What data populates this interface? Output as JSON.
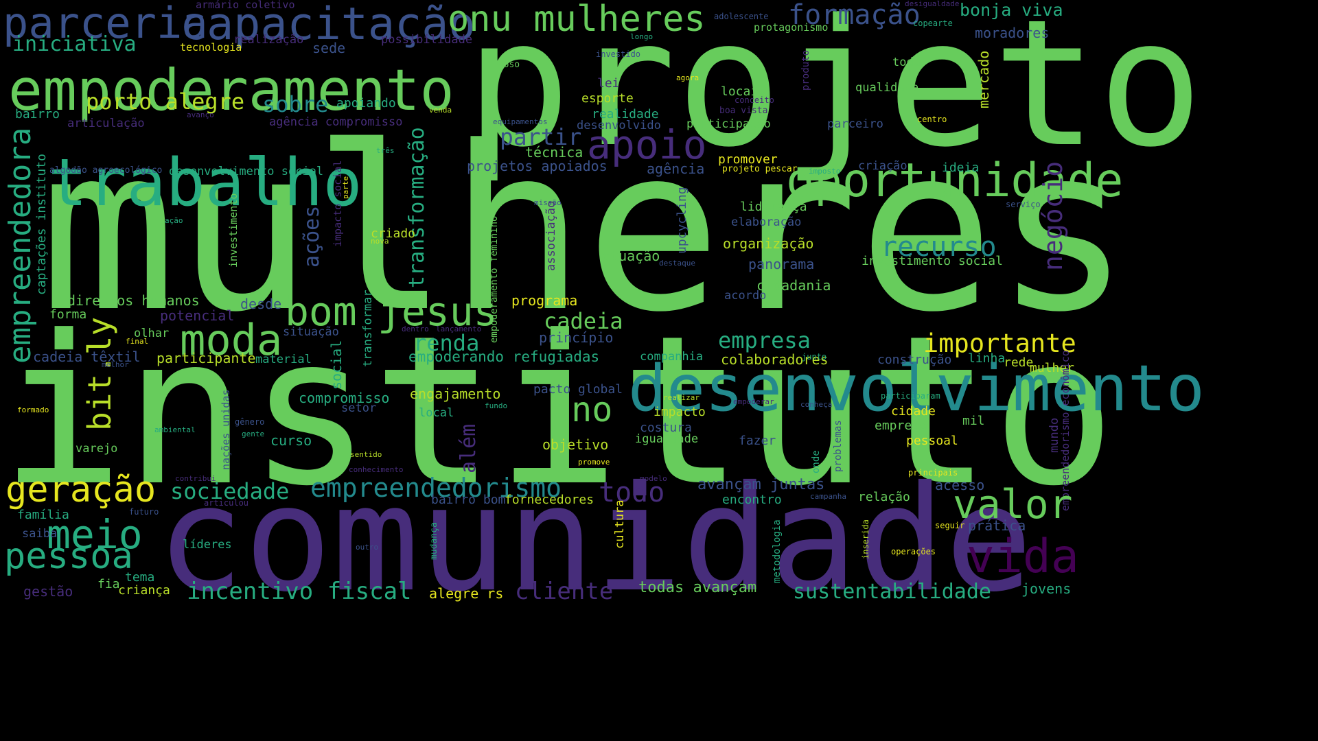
{
  "palette": {
    "background": "#000000",
    "yellow": "#e6e61f",
    "lime": "#b8de29",
    "green": "#67cc5c",
    "teal": "#27ad81",
    "cyan": "#238a8d",
    "blue": "#2c728e",
    "navy": "#3b528b",
    "indigo": "#472d7b",
    "purple": "#440154"
  },
  "words": [
    {
      "text": "mulheres",
      "color": "#67cc5c"
    },
    {
      "text": "instituto",
      "color": "#67cc5c"
    },
    {
      "text": "projeto",
      "color": "#67cc5c"
    },
    {
      "text": "comunidade",
      "color": "#472d7b"
    },
    {
      "text": "desenvolvimento",
      "color": "#238a8d"
    },
    {
      "text": "trabalho",
      "color": "#27ad81"
    },
    {
      "text": "empoderamento",
      "color": "#67cc5c"
    },
    {
      "text": "oportunidade",
      "color": "#67cc5c"
    },
    {
      "text": "capacitação",
      "color": "#3b528b"
    },
    {
      "text": "parceria",
      "color": "#3b528b"
    },
    {
      "text": "onu mulheres",
      "color": "#67cc5c"
    },
    {
      "text": "formação",
      "color": "#3b528b"
    },
    {
      "text": "bonja viva",
      "color": "#27ad81"
    },
    {
      "text": "moradores",
      "color": "#3b528b"
    },
    {
      "text": "armário coletivo",
      "color": "#472d7b"
    },
    {
      "text": "realização",
      "color": "#472d7b"
    },
    {
      "text": "possibilidade",
      "color": "#472d7b"
    },
    {
      "text": "adolescente",
      "color": "#3b528b"
    },
    {
      "text": "desigualdade",
      "color": "#472d7b"
    },
    {
      "text": "copearte",
      "color": "#27ad81"
    },
    {
      "text": "protagonismo",
      "color": "#67cc5c"
    },
    {
      "text": "iniciativa",
      "color": "#27ad81"
    },
    {
      "text": "tecnologia",
      "color": "#e6e61f"
    },
    {
      "text": "sede",
      "color": "#3b528b"
    },
    {
      "text": "longo",
      "color": "#27ad81"
    },
    {
      "text": "investido",
      "color": "#3b528b"
    },
    {
      "text": "idoso",
      "color": "#67cc5c"
    },
    {
      "text": "agora",
      "color": "#e6e61f"
    },
    {
      "text": "toda",
      "color": "#67cc5c"
    },
    {
      "text": "qualidade",
      "color": "#67cc5c"
    },
    {
      "text": "mercado",
      "color": "#b8de29"
    },
    {
      "text": "produto",
      "color": "#472d7b"
    },
    {
      "text": "porto alegre",
      "color": "#b8de29"
    },
    {
      "text": "sobre",
      "color": "#238a8d"
    },
    {
      "text": "apoiando",
      "color": "#27ad81"
    },
    {
      "text": "transformação",
      "color": "#27ad81"
    },
    {
      "text": "lei",
      "color": "#472d7b"
    },
    {
      "text": "esporte",
      "color": "#b8de29"
    },
    {
      "text": "locais",
      "color": "#67cc5c"
    },
    {
      "text": "conceito",
      "color": "#472d7b"
    },
    {
      "text": "boa vista",
      "color": "#472d7b"
    },
    {
      "text": "realidade",
      "color": "#27ad81"
    },
    {
      "text": "desenvolvido",
      "color": "#3b528b"
    },
    {
      "text": "participação",
      "color": "#67cc5c"
    },
    {
      "text": "parceiro",
      "color": "#3b528b"
    },
    {
      "text": "centro",
      "color": "#e6e61f"
    },
    {
      "text": "bairro",
      "color": "#27ad81"
    },
    {
      "text": "articulação",
      "color": "#472d7b"
    },
    {
      "text": "avanço",
      "color": "#472d7b"
    },
    {
      "text": "agência compromisso",
      "color": "#472d7b"
    },
    {
      "text": "venda",
      "color": "#b8de29"
    },
    {
      "text": "equipamentos",
      "color": "#3b528b"
    },
    {
      "text": "empreendedora",
      "color": "#27ad81"
    },
    {
      "text": "apoio",
      "color": "#472d7b"
    },
    {
      "text": "partir",
      "color": "#3b528b"
    },
    {
      "text": "técnica",
      "color": "#67cc5c"
    },
    {
      "text": "projetos apoiados",
      "color": "#3b528b"
    },
    {
      "text": "agência",
      "color": "#3b528b"
    },
    {
      "text": "promover",
      "color": "#e6e61f"
    },
    {
      "text": "projeto pescar",
      "color": "#e6e61f"
    },
    {
      "text": "imposto",
      "color": "#27ad81"
    },
    {
      "text": "criação",
      "color": "#3b528b"
    },
    {
      "text": "ideia",
      "color": "#27ad81"
    },
    {
      "text": "algodão agroecológico",
      "color": "#3b528b"
    },
    {
      "text": "três",
      "color": "#27ad81"
    },
    {
      "text": "desenvolvimento social",
      "color": "#27ad81"
    },
    {
      "text": "impacto social",
      "color": "#472d7b"
    },
    {
      "text": "parte",
      "color": "#e6e61f"
    },
    {
      "text": "negócio",
      "color": "#472d7b"
    },
    {
      "text": "liderança",
      "color": "#67cc5c"
    },
    {
      "text": "elaboração",
      "color": "#3b528b"
    },
    {
      "text": "serviço",
      "color": "#3b528b"
    },
    {
      "text": "captações instituto",
      "color": "#27ad81"
    },
    {
      "text": "investimento",
      "color": "#67cc5c"
    },
    {
      "text": "ações",
      "color": "#3b528b"
    },
    {
      "text": "ação",
      "color": "#27ad81"
    },
    {
      "text": "missão",
      "color": "#3b528b"
    },
    {
      "text": "empoderamento feminino",
      "color": "#67cc5c"
    },
    {
      "text": "associação",
      "color": "#472d7b"
    },
    {
      "text": "upcycling",
      "color": "#3b528b"
    },
    {
      "text": "organização",
      "color": "#b8de29"
    },
    {
      "text": "recurso",
      "color": "#238a8d"
    },
    {
      "text": "investimento social",
      "color": "#67cc5c"
    },
    {
      "text": "criado",
      "color": "#b8de29"
    },
    {
      "text": "nova",
      "color": "#b8de29"
    },
    {
      "text": "atuação",
      "color": "#67cc5c"
    },
    {
      "text": "destaque",
      "color": "#3b528b"
    },
    {
      "text": "panorama",
      "color": "#3b528b"
    },
    {
      "text": "cidadania",
      "color": "#67cc5c"
    },
    {
      "text": "direitos humanos",
      "color": "#67cc5c"
    },
    {
      "text": "bom",
      "color": "#67cc5c"
    },
    {
      "text": "jesus",
      "color": "#67cc5c"
    },
    {
      "text": "desde",
      "color": "#3b528b"
    },
    {
      "text": "programa",
      "color": "#e6e61f"
    },
    {
      "text": "acordo",
      "color": "#3b528b"
    },
    {
      "text": "forma",
      "color": "#67cc5c"
    },
    {
      "text": "bit.ly",
      "color": "#b8de29"
    },
    {
      "text": "potencial",
      "color": "#472d7b"
    },
    {
      "text": "moda",
      "color": "#67cc5c"
    },
    {
      "text": "cadeia",
      "color": "#67cc5c"
    },
    {
      "text": "olhar",
      "color": "#67cc5c"
    },
    {
      "text": "situação",
      "color": "#3b528b"
    },
    {
      "text": "dentro",
      "color": "#472d7b"
    },
    {
      "text": "lançamento",
      "color": "#472d7b"
    },
    {
      "text": "princípio",
      "color": "#3b528b"
    },
    {
      "text": "empresa",
      "color": "#27ad81"
    },
    {
      "text": "importante",
      "color": "#e6e61f"
    },
    {
      "text": "final",
      "color": "#e6e61f"
    },
    {
      "text": "renda",
      "color": "#27ad81"
    },
    {
      "text": "cadeia têxtil",
      "color": "#3b528b"
    },
    {
      "text": "participante",
      "color": "#b8de29"
    },
    {
      "text": "material",
      "color": "#27ad81"
    },
    {
      "text": "empoderando refugiadas",
      "color": "#27ad81"
    },
    {
      "text": "companhia",
      "color": "#27ad81"
    },
    {
      "text": "colaboradores",
      "color": "#b8de29"
    },
    {
      "text": "junto",
      "color": "#27ad81"
    },
    {
      "text": "construção",
      "color": "#3b528b"
    },
    {
      "text": "linha",
      "color": "#27ad81"
    },
    {
      "text": "rede",
      "color": "#b8de29"
    },
    {
      "text": "mulher",
      "color": "#b8de29"
    },
    {
      "text": "melhor",
      "color": "#3b528b"
    },
    {
      "text": "transformar",
      "color": "#27ad81"
    },
    {
      "text": "social",
      "color": "#27ad81"
    },
    {
      "text": "engajamento",
      "color": "#b8de29"
    },
    {
      "text": "pacto global",
      "color": "#3b528b"
    },
    {
      "text": "participaram",
      "color": "#27ad81"
    },
    {
      "text": "compromisso",
      "color": "#27ad81"
    },
    {
      "text": "setor",
      "color": "#3b528b"
    },
    {
      "text": "fundo",
      "color": "#27ad81"
    },
    {
      "text": "realizar",
      "color": "#b8de29"
    },
    {
      "text": "empoderar",
      "color": "#472d7b"
    },
    {
      "text": "conheça",
      "color": "#3b528b"
    },
    {
      "text": "cidade",
      "color": "#e6e61f"
    },
    {
      "text": "empreendedorismo econômico",
      "color": "#472d7b"
    },
    {
      "text": "formado",
      "color": "#e6e61f"
    },
    {
      "text": "nações unidas",
      "color": "#3b528b"
    },
    {
      "text": "gênero",
      "color": "#3b528b"
    },
    {
      "text": "local",
      "color": "#27ad81"
    },
    {
      "text": "além",
      "color": "#472d7b"
    },
    {
      "text": "impacto",
      "color": "#b8de29"
    },
    {
      "text": "costura",
      "color": "#3b528b"
    },
    {
      "text": "igualdade",
      "color": "#67cc5c"
    },
    {
      "text": "mil",
      "color": "#67cc5c"
    },
    {
      "text": "emprego",
      "color": "#67cc5c"
    },
    {
      "text": "ambiental",
      "color": "#27ad81"
    },
    {
      "text": "gente",
      "color": "#27ad81"
    },
    {
      "text": "curso",
      "color": "#27ad81"
    },
    {
      "text": "objetivo",
      "color": "#b8de29"
    },
    {
      "text": "fazer",
      "color": "#3b528b"
    },
    {
      "text": "problemas",
      "color": "#3b528b"
    },
    {
      "text": "pessoal",
      "color": "#e6e61f"
    },
    {
      "text": "varejo",
      "color": "#67cc5c"
    },
    {
      "text": "sentido",
      "color": "#b8de29"
    },
    {
      "text": "promove",
      "color": "#e6e61f"
    },
    {
      "text": "onde",
      "color": "#27ad81"
    },
    {
      "text": "mundo",
      "color": "#472d7b"
    },
    {
      "text": "principais",
      "color": "#e6e61f"
    },
    {
      "text": "conhecimento",
      "color": "#472d7b"
    },
    {
      "text": "modelo",
      "color": "#472d7b"
    },
    {
      "text": "contribui",
      "color": "#472d7b"
    },
    {
      "text": "geração",
      "color": "#e6e61f"
    },
    {
      "text": "sociedade",
      "color": "#27ad81"
    },
    {
      "text": "empreendedorismo",
      "color": "#238a8d"
    },
    {
      "text": "todo",
      "color": "#472d7b"
    },
    {
      "text": "avançam juntas",
      "color": "#3b528b"
    },
    {
      "text": "acesso",
      "color": "#3b528b"
    },
    {
      "text": "valor",
      "color": "#67cc5c"
    },
    {
      "text": "meio",
      "color": "#27ad81"
    },
    {
      "text": "família",
      "color": "#27ad81"
    },
    {
      "text": "futuro",
      "color": "#3b528b"
    },
    {
      "text": "articulou",
      "color": "#472d7b"
    },
    {
      "text": "bairro bom",
      "color": "#3b528b"
    },
    {
      "text": "fornecedores",
      "color": "#b8de29"
    },
    {
      "text": "encontro",
      "color": "#27ad81"
    },
    {
      "text": "relação",
      "color": "#67cc5c"
    },
    {
      "text": "campanha",
      "color": "#3b528b"
    },
    {
      "text": "prática",
      "color": "#3b528b"
    },
    {
      "text": "seguir",
      "color": "#e6e61f"
    },
    {
      "text": "saiba",
      "color": "#3b528b"
    },
    {
      "text": "pessoa",
      "color": "#27ad81"
    },
    {
      "text": "líderes",
      "color": "#27ad81"
    },
    {
      "text": "mudança",
      "color": "#27ad81"
    },
    {
      "text": "cultura",
      "color": "#e6e61f"
    },
    {
      "text": "metodologia",
      "color": "#27ad81"
    },
    {
      "text": "inserida",
      "color": "#b8de29"
    },
    {
      "text": "operações",
      "color": "#e6e61f"
    },
    {
      "text": "vida",
      "color": "#440154"
    },
    {
      "text": "outro",
      "color": "#3b528b"
    },
    {
      "text": "tema",
      "color": "#27ad81"
    },
    {
      "text": "fia",
      "color": "#67cc5c"
    },
    {
      "text": "criança",
      "color": "#b8de29"
    },
    {
      "text": "gestão",
      "color": "#472d7b"
    },
    {
      "text": "incentivo fiscal",
      "color": "#27ad81"
    },
    {
      "text": "cliente",
      "color": "#472d7b"
    },
    {
      "text": "alegre rs",
      "color": "#e6e61f"
    },
    {
      "text": "todas avançam",
      "color": "#67cc5c"
    },
    {
      "text": "sustentabilidade",
      "color": "#27ad81"
    },
    {
      "text": "jovens",
      "color": "#27ad81"
    },
    {
      "text": "ano",
      "color": "#67cc5c"
    }
  ]
}
